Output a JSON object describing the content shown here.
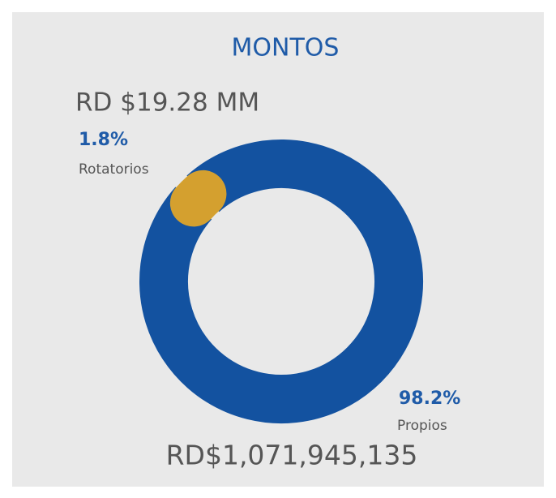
{
  "chart_data": {
    "type": "donut",
    "title": "MONTOS",
    "categories": [
      "Rotatorios",
      "Propios"
    ],
    "values": [
      1.8,
      98.2
    ],
    "value_labels": [
      "1.8%",
      "98.2%"
    ],
    "amount_labels": [
      "RD $19.28 MM",
      "RD$1,071,945,135"
    ],
    "colors": [
      "#d4a02f",
      "#1352a0"
    ]
  }
}
